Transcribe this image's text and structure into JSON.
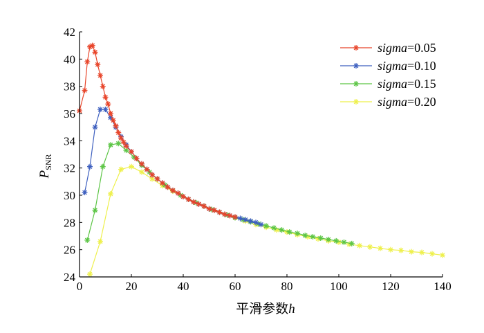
{
  "chart_data": {
    "type": "line",
    "xlabel": {
      "prefix": "平滑参数",
      "var": "h"
    },
    "ylabel": {
      "main": "P",
      "sub": "SNR"
    },
    "xlim": [
      0,
      140
    ],
    "ylim": [
      24,
      42
    ],
    "xticks": [
      0,
      20,
      40,
      60,
      80,
      100,
      120,
      140
    ],
    "yticks": [
      24,
      26,
      28,
      30,
      32,
      34,
      36,
      38,
      40,
      42
    ],
    "grid": false,
    "legend_position": "top-right",
    "marker": "asterisk",
    "series": [
      {
        "name": "sigma=0.05",
        "label_var": "sigma",
        "label_value": "=0.05",
        "color": "#e8452a",
        "points": [
          [
            0,
            36.2
          ],
          [
            2,
            37.7
          ],
          [
            3,
            39.8
          ],
          [
            4,
            40.9
          ],
          [
            5,
            41.0
          ],
          [
            6,
            40.5
          ],
          [
            7,
            39.6
          ],
          [
            8,
            38.8
          ],
          [
            9,
            38.0
          ],
          [
            10,
            37.2
          ],
          [
            11,
            36.7
          ],
          [
            12,
            36.0
          ],
          [
            13,
            35.5
          ],
          [
            14,
            35.1
          ],
          [
            15,
            34.6
          ],
          [
            16,
            34.2
          ],
          [
            17,
            33.9
          ],
          [
            18,
            33.6
          ],
          [
            20,
            33.2
          ],
          [
            22,
            32.7
          ],
          [
            24,
            32.3
          ],
          [
            26,
            31.9
          ],
          [
            28,
            31.5
          ],
          [
            30,
            31.2
          ],
          [
            32,
            30.9
          ],
          [
            34,
            30.6
          ],
          [
            36,
            30.35
          ],
          [
            38,
            30.15
          ],
          [
            40,
            29.9
          ],
          [
            42,
            29.7
          ],
          [
            44,
            29.5
          ],
          [
            46,
            29.35
          ],
          [
            48,
            29.2
          ],
          [
            50,
            29.0
          ],
          [
            52,
            28.9
          ],
          [
            54,
            28.75
          ],
          [
            56,
            28.6
          ],
          [
            58,
            28.5
          ],
          [
            60,
            28.4
          ]
        ]
      },
      {
        "name": "sigma=0.10",
        "label_var": "sigma",
        "label_value": "=0.10",
        "color": "#3d5fbf",
        "points": [
          [
            2,
            30.2
          ],
          [
            4,
            32.1
          ],
          [
            6,
            35.0
          ],
          [
            8,
            36.3
          ],
          [
            10,
            36.3
          ],
          [
            12,
            35.7
          ],
          [
            14,
            35.0
          ],
          [
            16,
            34.3
          ],
          [
            18,
            33.7
          ],
          [
            20,
            33.2
          ],
          [
            22,
            32.7
          ],
          [
            24,
            32.3
          ],
          [
            26,
            31.9
          ],
          [
            28,
            31.5
          ],
          [
            30,
            31.2
          ],
          [
            32,
            30.9
          ],
          [
            34,
            30.6
          ],
          [
            36,
            30.35
          ],
          [
            38,
            30.15
          ],
          [
            40,
            29.9
          ],
          [
            42,
            29.7
          ],
          [
            44,
            29.5
          ],
          [
            46,
            29.35
          ],
          [
            48,
            29.2
          ],
          [
            50,
            29.0
          ],
          [
            52,
            28.9
          ],
          [
            54,
            28.75
          ],
          [
            56,
            28.6
          ],
          [
            58,
            28.5
          ],
          [
            60,
            28.4
          ],
          [
            62,
            28.3
          ],
          [
            64,
            28.2
          ],
          [
            66,
            28.1
          ],
          [
            68,
            28.0
          ],
          [
            70,
            27.85
          ]
        ]
      },
      {
        "name": "sigma=0.15",
        "label_var": "sigma",
        "label_value": "=0.15",
        "color": "#5cc545",
        "points": [
          [
            3,
            26.7
          ],
          [
            6,
            28.9
          ],
          [
            9,
            32.1
          ],
          [
            12,
            33.7
          ],
          [
            15,
            33.8
          ],
          [
            18,
            33.3
          ],
          [
            21,
            32.8
          ],
          [
            24,
            32.2
          ],
          [
            27,
            31.7
          ],
          [
            30,
            31.2
          ],
          [
            33,
            30.75
          ],
          [
            36,
            30.35
          ],
          [
            39,
            30.0
          ],
          [
            42,
            29.7
          ],
          [
            45,
            29.45
          ],
          [
            48,
            29.2
          ],
          [
            51,
            28.95
          ],
          [
            54,
            28.75
          ],
          [
            57,
            28.55
          ],
          [
            60,
            28.35
          ],
          [
            63,
            28.2
          ],
          [
            66,
            28.05
          ],
          [
            69,
            27.9
          ],
          [
            72,
            27.75
          ],
          [
            75,
            27.6
          ],
          [
            78,
            27.45
          ],
          [
            81,
            27.3
          ],
          [
            84,
            27.2
          ],
          [
            87,
            27.05
          ],
          [
            90,
            26.95
          ],
          [
            93,
            26.85
          ],
          [
            96,
            26.75
          ],
          [
            99,
            26.65
          ],
          [
            102,
            26.55
          ],
          [
            105,
            26.45
          ]
        ]
      },
      {
        "name": "sigma=0.20",
        "label_var": "sigma",
        "label_value": "=0.20",
        "color": "#eef04a",
        "points": [
          [
            4,
            24.2
          ],
          [
            8,
            26.6
          ],
          [
            12,
            30.1
          ],
          [
            16,
            31.9
          ],
          [
            20,
            32.1
          ],
          [
            24,
            31.7
          ],
          [
            28,
            31.2
          ],
          [
            32,
            30.7
          ],
          [
            36,
            30.3
          ],
          [
            40,
            29.9
          ],
          [
            44,
            29.5
          ],
          [
            48,
            29.2
          ],
          [
            52,
            28.9
          ],
          [
            56,
            28.6
          ],
          [
            60,
            28.35
          ],
          [
            64,
            28.1
          ],
          [
            68,
            27.85
          ],
          [
            72,
            27.65
          ],
          [
            76,
            27.45
          ],
          [
            80,
            27.3
          ],
          [
            84,
            27.1
          ],
          [
            88,
            26.95
          ],
          [
            92,
            26.8
          ],
          [
            96,
            26.65
          ],
          [
            100,
            26.55
          ],
          [
            104,
            26.4
          ],
          [
            108,
            26.3
          ],
          [
            112,
            26.2
          ],
          [
            116,
            26.1
          ],
          [
            120,
            26.0
          ],
          [
            124,
            25.95
          ],
          [
            128,
            25.85
          ],
          [
            132,
            25.8
          ],
          [
            136,
            25.7
          ],
          [
            140,
            25.6
          ]
        ]
      }
    ]
  }
}
